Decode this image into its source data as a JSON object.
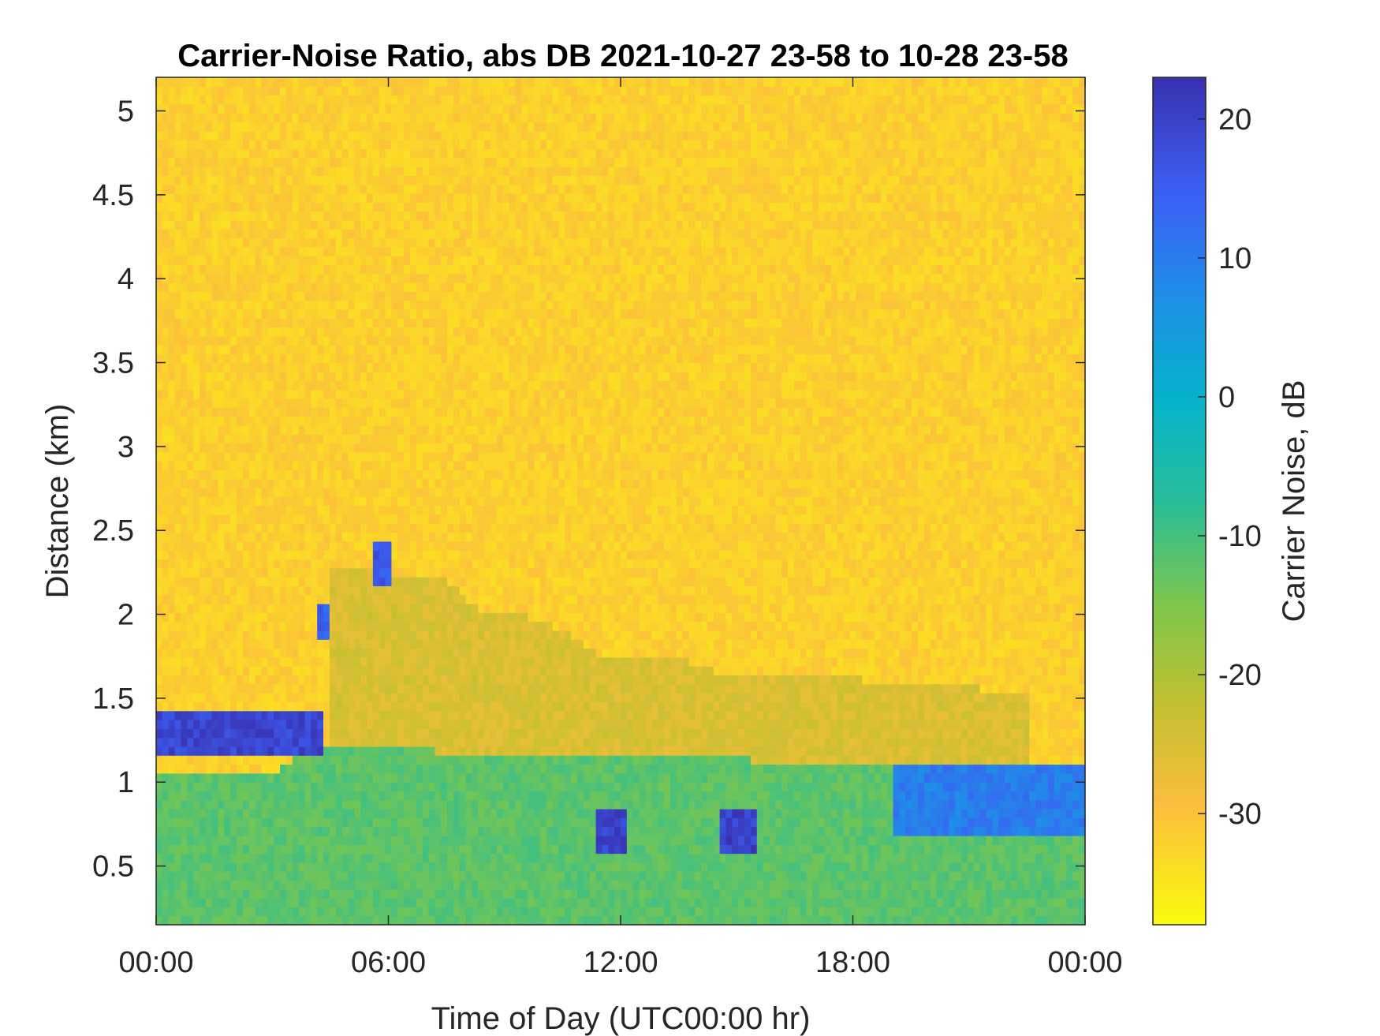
{
  "chart_data": {
    "type": "heatmap",
    "title": "Carrier-Noise Ratio, abs DB 2021-10-27 23-58 to 10-28 23-58",
    "xlabel": "Time of Day (UTC00:00 hr)",
    "ylabel": "Distance (km)",
    "colorbar_label": "Carrier Noise, dB",
    "xlim_hours": [
      0,
      24
    ],
    "ylim_km": [
      0.15,
      5.2
    ],
    "clim_db": [
      -38,
      23
    ],
    "x_ticks": [
      0,
      6,
      12,
      18,
      24
    ],
    "x_tick_labels": [
      "00:00",
      "06:00",
      "12:00",
      "18:00",
      "00:00"
    ],
    "y_ticks": [
      0.5,
      1,
      1.5,
      2,
      2.5,
      3,
      3.5,
      4,
      4.5,
      5
    ],
    "y_tick_labels": [
      "0.5",
      "1",
      "1.5",
      "2",
      "2.5",
      "3",
      "3.5",
      "4",
      "4.5",
      "5"
    ],
    "colorbar_ticks": [
      20,
      10,
      0,
      -10,
      -20,
      -30
    ],
    "colorbar_tick_labels": [
      "20",
      "10",
      "0",
      "-10",
      "-20",
      "-30"
    ],
    "colormap": [
      "#f9fb0e",
      "#fcbe3c",
      "#c2c030",
      "#7cc64e",
      "#27bd99",
      "#05b3ca",
      "#1f8ee6",
      "#3b60f5",
      "#3a31b0"
    ],
    "background_value_db": -32,
    "regions": [
      {
        "label": "boundary layer aerosol",
        "t_start": 0,
        "t_end": 24,
        "top_km": [
          1.05,
          1.05,
          1.05,
          1.05,
          1.2,
          1.2,
          1.2,
          1.2,
          1.15,
          1.15,
          1.15,
          1.15,
          1.15,
          1.15,
          1.15,
          1.15,
          1.1,
          1.1,
          1.1,
          1.1,
          1.1,
          1.1,
          1.0,
          1.0,
          1.0
        ],
        "value_db": -12
      },
      {
        "label": "residual layer",
        "t_start": 4.5,
        "t_end": 22.5,
        "top_km": [
          2.3,
          2.3,
          2.2,
          2.2,
          2.0,
          2.0,
          1.9,
          1.75,
          1.75,
          1.75,
          1.65,
          1.65,
          1.65,
          1.65,
          1.6,
          1.6,
          1.6,
          1.55,
          1.55
        ],
        "value_db": -25
      },
      {
        "label": "cloud base 0h-4h",
        "t_start": 0,
        "t_end": 4.3,
        "y_km": [
          1.15,
          1.45
        ],
        "value_db": 19
      },
      {
        "label": "cloud 4.2h",
        "t_start": 4.2,
        "t_end": 4.5,
        "y_km": [
          1.85,
          2.05
        ],
        "value_db": 14
      },
      {
        "label": "cloud 5.7h",
        "t_start": 5.65,
        "t_end": 6.0,
        "y_km": [
          2.15,
          2.45
        ],
        "value_db": 16
      },
      {
        "label": "cloud 11.5h",
        "t_start": 11.3,
        "t_end": 12.1,
        "y_km": [
          0.6,
          0.85
        ],
        "value_db": 20
      },
      {
        "label": "cloud 14.8h",
        "t_start": 14.6,
        "t_end": 15.5,
        "y_km": [
          0.55,
          0.85
        ],
        "value_db": 20
      },
      {
        "label": "cloud 19h-24h",
        "t_start": 19.0,
        "t_end": 24,
        "y_km": [
          0.7,
          1.1
        ],
        "value_db": 10
      }
    ]
  }
}
